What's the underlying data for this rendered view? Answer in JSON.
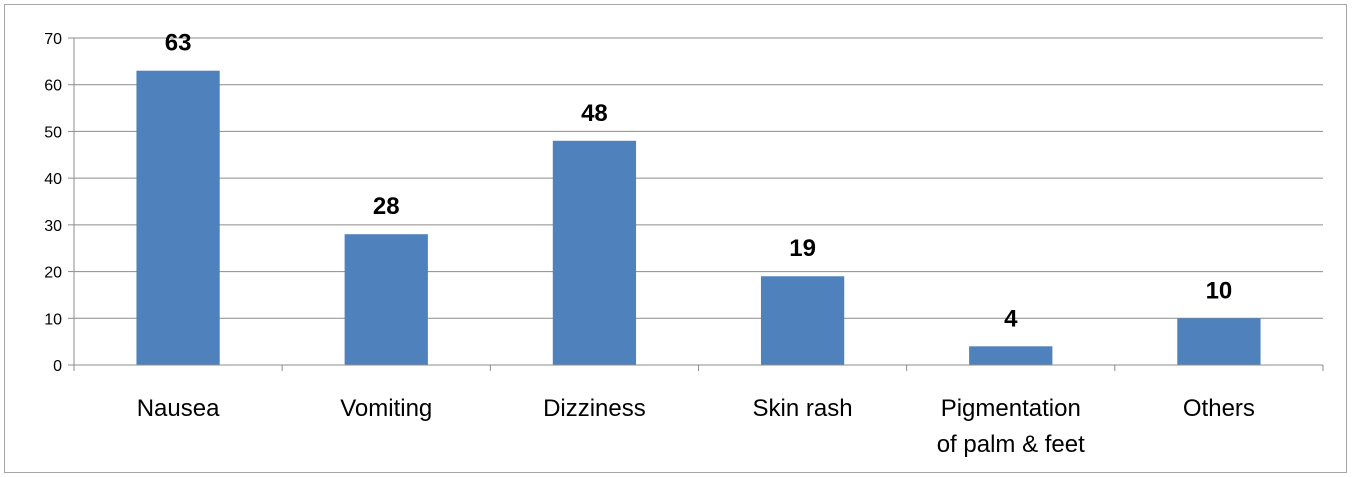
{
  "chart_data": {
    "type": "bar",
    "categories": [
      [
        "Nausea"
      ],
      [
        "Vomiting"
      ],
      [
        "Dizziness"
      ],
      [
        "Skin rash"
      ],
      [
        "Pigmentation",
        "of palm & feet"
      ],
      [
        "Others"
      ]
    ],
    "values": [
      63,
      28,
      48,
      19,
      4,
      10
    ],
    "ylim": [
      0,
      70
    ],
    "yticks": [
      0,
      10,
      20,
      30,
      40,
      50,
      60,
      70
    ],
    "grid": true,
    "bar_color": "#4f81bd",
    "grid_color": "#8c8c8c",
    "axis_color": "#8c8c8c",
    "data_labels": true
  }
}
